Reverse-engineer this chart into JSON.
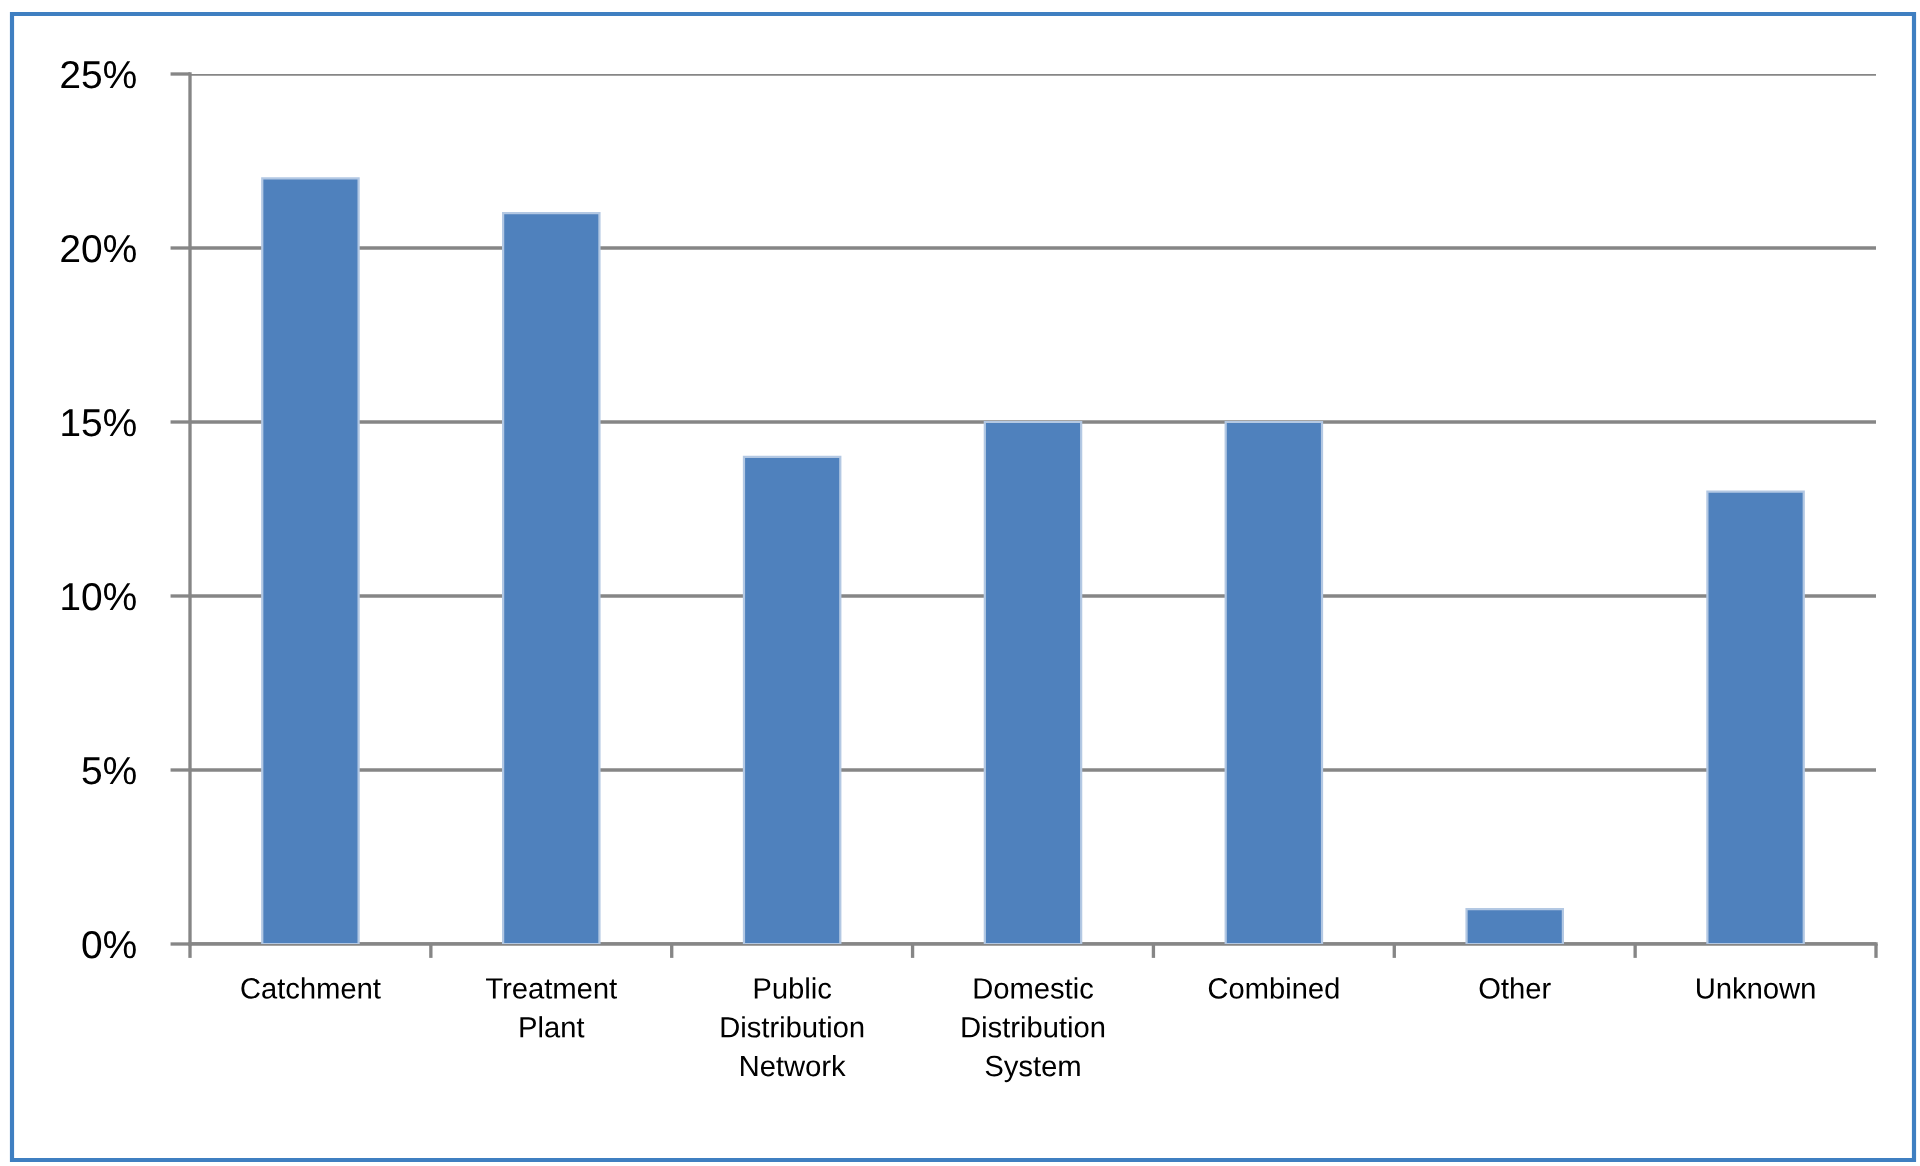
{
  "chart_data": {
    "type": "bar",
    "categories": [
      "Catchment",
      "Treatment Plant",
      "Public Distribution Network",
      "Domestic Distribution System",
      "Combined",
      "Other",
      "Unknown"
    ],
    "values": [
      22,
      21,
      14,
      15,
      15,
      1,
      13
    ],
    "color": "#4f81bd",
    "ylim": [
      0,
      25
    ],
    "yticks": [
      {
        "value": 0,
        "label": "0%"
      },
      {
        "value": 5,
        "label": "5%"
      },
      {
        "value": 10,
        "label": "10%"
      },
      {
        "value": 15,
        "label": "15%"
      },
      {
        "value": 20,
        "label": "20%"
      },
      {
        "value": 25,
        "label": "25%"
      }
    ],
    "grid": "y"
  }
}
